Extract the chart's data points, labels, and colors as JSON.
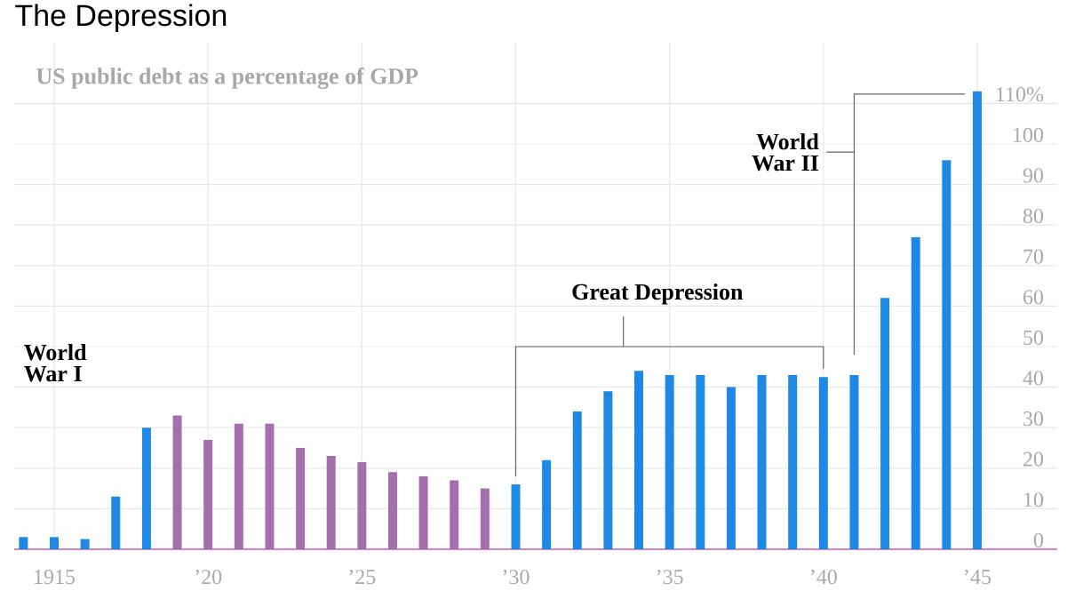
{
  "chart_data": {
    "type": "bar",
    "title": "The Depression",
    "subtitle": "US public debt as a percentage of GDP",
    "annotations": [
      "World War I",
      "Great Depression",
      "World War II"
    ],
    "x": [
      1914,
      1915,
      1916,
      1917,
      1918,
      1919,
      1920,
      1921,
      1922,
      1923,
      1924,
      1925,
      1926,
      1927,
      1928,
      1929,
      1930,
      1931,
      1932,
      1933,
      1934,
      1935,
      1936,
      1937,
      1938,
      1939,
      1940,
      1941,
      1942,
      1943,
      1944,
      1945
    ],
    "values": [
      3,
      3,
      2.5,
      13,
      30,
      33,
      27,
      31,
      31,
      25,
      23,
      21.5,
      19,
      18,
      17,
      15,
      16,
      22,
      34,
      39,
      44,
      43,
      43,
      40,
      43,
      43,
      42.5,
      43,
      62,
      77,
      96,
      113
    ],
    "colors": [
      "#1e88e5",
      "#1e88e5",
      "#1e88e5",
      "#1e88e5",
      "#1e88e5",
      "#a56fae",
      "#a56fae",
      "#a56fae",
      "#a56fae",
      "#a56fae",
      "#a56fae",
      "#a56fae",
      "#a56fae",
      "#a56fae",
      "#a56fae",
      "#a56fae",
      "#1e88e5",
      "#1e88e5",
      "#1e88e5",
      "#1e88e5",
      "#1e88e5",
      "#1e88e5",
      "#1e88e5",
      "#1e88e5",
      "#1e88e5",
      "#1e88e5",
      "#1e88e5",
      "#1e88e5",
      "#1e88e5",
      "#1e88e5",
      "#1e88e5",
      "#1e88e5"
    ],
    "xlim": [
      1913.7,
      1947.6
    ],
    "ylim": [
      0,
      125
    ],
    "xticks": [
      {
        "value": 1915,
        "label": "1915"
      },
      {
        "value": 1920,
        "label": "’20"
      },
      {
        "value": 1925,
        "label": "’25"
      },
      {
        "value": 1930,
        "label": "’30"
      },
      {
        "value": 1935,
        "label": "’35"
      },
      {
        "value": 1940,
        "label": "’40"
      },
      {
        "value": 1945,
        "label": "’45"
      }
    ],
    "yticks": [
      0,
      10,
      20,
      30,
      40,
      50,
      60,
      70,
      80,
      90,
      100,
      {
        "value": 110,
        "label": "110%"
      }
    ],
    "grid": true
  }
}
